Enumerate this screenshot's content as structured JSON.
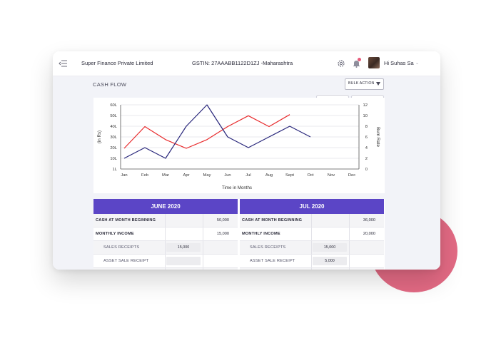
{
  "topbar": {
    "company": "Super Finance Private Limited",
    "gstin": "GSTIN: 27AAABB1122D1ZJ -Maharashtra",
    "greeting": "Hi Suhas Sa"
  },
  "page": {
    "section_title": "CASH FLOW",
    "bulk_action_label": "BULK ACTION"
  },
  "chart_data": {
    "type": "line",
    "x": [
      "Jan",
      "Feb",
      "Mar",
      "Apr",
      "May",
      "Jun",
      "Jul",
      "Aug",
      "Sept",
      "Oct",
      "Nov",
      "Dec"
    ],
    "xlabel": "Time in Months",
    "ylabel": "(in Rs)",
    "y2label": "Burn Rate",
    "y_ticks": [
      "1L",
      "10L",
      "20L",
      "30L",
      "40L",
      "50L",
      "60L"
    ],
    "y2_ticks": [
      "0",
      "2",
      "4",
      "6",
      "8",
      "10",
      "12"
    ],
    "ylim": [
      1,
      60
    ],
    "y2lim": [
      0,
      12
    ],
    "grid": true,
    "series": [
      {
        "color": "#e8292b",
        "axis": "left",
        "values": [
          20,
          40,
          28,
          20,
          28,
          40,
          50,
          40,
          51,
          null,
          null,
          null
        ]
      },
      {
        "color": "#27257a",
        "axis": "right",
        "values": [
          2,
          4,
          2,
          8,
          12,
          6,
          4,
          6,
          8,
          6,
          null,
          null
        ]
      }
    ]
  },
  "table": {
    "months": [
      {
        "header": "JUNE 2020",
        "rows": [
          {
            "label": "CASH AT MONTH BEGINNING",
            "value": "50,000",
            "style": "bold",
            "input": ""
          },
          {
            "label": "MONTHLY INCOME",
            "value": "15,000",
            "style": "bold",
            "input": ""
          },
          {
            "label": "SALES RECEIPTS",
            "value": "",
            "style": "sub",
            "input": "15,000"
          },
          {
            "label": "ASSET SALE RECEIPT",
            "value": "",
            "style": "sub",
            "input": ""
          },
          {
            "label": "",
            "value": "",
            "style": "sub",
            "input": ""
          }
        ]
      },
      {
        "header": "JUL 2020",
        "rows": [
          {
            "label": "CASH AT MONTH BEGINNING",
            "value": "36,000",
            "style": "bold",
            "input": ""
          },
          {
            "label": "MONTHLY INCOME",
            "value": "20,000",
            "style": "bold",
            "input": ""
          },
          {
            "label": "SALES RECEIPTS",
            "value": "",
            "style": "sub",
            "input": "15,000"
          },
          {
            "label": "ASSET SALE RECEIPT",
            "value": "",
            "style": "sub",
            "input": "5,000"
          },
          {
            "label": "",
            "value": "",
            "style": "sub",
            "input": ""
          }
        ]
      }
    ]
  },
  "colors": {
    "accent": "#5b45c6",
    "blob": "#e36a84",
    "series_red": "#e8292b",
    "series_navy": "#27257a"
  },
  "icons": [
    "menu-collapse-icon",
    "gear-icon",
    "bell-icon",
    "chevron-down-icon",
    "caret-down-icon"
  ]
}
